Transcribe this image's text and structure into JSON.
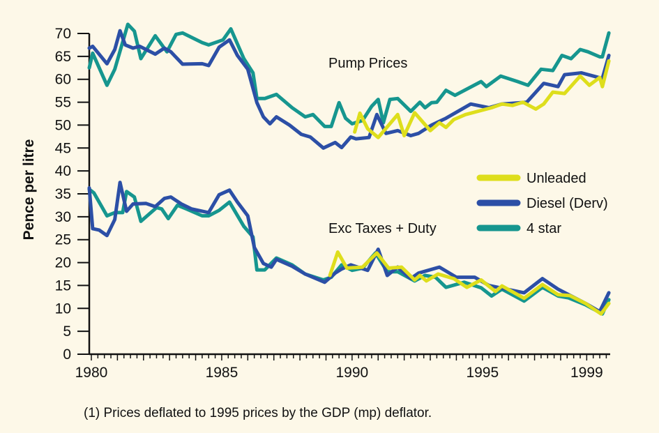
{
  "chart_data": {
    "type": "line",
    "ylabel": "Pence per litre",
    "xlabel": "",
    "ylim": [
      0,
      70
    ],
    "xlim": [
      1979.92,
      1999.9
    ],
    "y_ticks": [
      "0",
      "5",
      "10",
      "15",
      "20",
      "25",
      "30",
      "35",
      "40",
      "45",
      "50",
      "55",
      "60",
      "65",
      "70"
    ],
    "x_ticks": [
      {
        "value": 1980,
        "label": "1980"
      },
      {
        "value": 1985,
        "label": "1985"
      },
      {
        "value": 1990,
        "label": "1990"
      },
      {
        "value": 1995,
        "label": "1995"
      },
      {
        "value": 1999,
        "label": "1999"
      }
    ],
    "grid": false,
    "legend_position": "right-middle",
    "annotations": {
      "pump": "Pump Prices",
      "exc": "Exc Taxes + Duty"
    },
    "footnote": "(1) Prices deflated to 1995 prices by the GDP (mp) deflator.",
    "legend": [
      {
        "name": "Unleaded",
        "color": "#dede1c"
      },
      {
        "name": "Diesel (Derv)",
        "color": "#2c4fa6"
      },
      {
        "name": "4 star",
        "color": "#16968f"
      }
    ],
    "series": [
      {
        "name": "4 star",
        "group": "Pump Prices",
        "color": "#16968f",
        "points": [
          [
            1979.92,
            62.5
          ],
          [
            1980.05,
            65.7
          ],
          [
            1980.6,
            58.7
          ],
          [
            1980.9,
            62.2
          ],
          [
            1981.4,
            72
          ],
          [
            1981.65,
            70.5
          ],
          [
            1981.9,
            64.5
          ],
          [
            1982.45,
            69.5
          ],
          [
            1982.9,
            66
          ],
          [
            1983.25,
            69.8
          ],
          [
            1983.5,
            70.1
          ],
          [
            1984.25,
            68
          ],
          [
            1984.5,
            67.5
          ],
          [
            1985.05,
            68.6
          ],
          [
            1985.35,
            71
          ],
          [
            1985.85,
            64.5
          ],
          [
            1986.2,
            61.4
          ],
          [
            1986.35,
            55.8
          ],
          [
            1986.65,
            55.8
          ],
          [
            1987.1,
            56.7
          ],
          [
            1987.7,
            53.8
          ],
          [
            1988.2,
            51.8
          ],
          [
            1988.5,
            52.3
          ],
          [
            1988.95,
            49.7
          ],
          [
            1989.2,
            49.7
          ],
          [
            1989.5,
            54.9
          ],
          [
            1989.75,
            51.5
          ],
          [
            1990.0,
            50.3
          ],
          [
            1990.4,
            51
          ],
          [
            1990.75,
            54.1
          ],
          [
            1991.0,
            55.6
          ],
          [
            1991.2,
            50.5
          ],
          [
            1991.45,
            55.6
          ],
          [
            1991.75,
            55.8
          ],
          [
            1992.25,
            53
          ],
          [
            1992.6,
            55
          ],
          [
            1992.8,
            53.8
          ],
          [
            1993.05,
            54.9
          ],
          [
            1993.25,
            55
          ],
          [
            1993.6,
            57.6
          ],
          [
            1993.95,
            56.5
          ],
          [
            1994.95,
            59.5
          ],
          [
            1995.15,
            58.4
          ],
          [
            1995.7,
            60.7
          ],
          [
            1996.35,
            59.5
          ],
          [
            1996.75,
            58.7
          ],
          [
            1997.25,
            62.2
          ],
          [
            1997.7,
            61.9
          ],
          [
            1998.05,
            65.2
          ],
          [
            1998.4,
            64.5
          ],
          [
            1998.75,
            66.5
          ],
          [
            1999.05,
            66
          ],
          [
            1999.5,
            64.9
          ],
          [
            1999.6,
            64.9
          ],
          [
            1999.85,
            70.1
          ]
        ]
      },
      {
        "name": "Diesel (Derv)",
        "group": "Pump Prices",
        "color": "#2c4fa6",
        "points": [
          [
            1979.92,
            66.8
          ],
          [
            1980.05,
            67.2
          ],
          [
            1980.6,
            63.4
          ],
          [
            1980.9,
            66.5
          ],
          [
            1981.1,
            70.6
          ],
          [
            1981.3,
            67.5
          ],
          [
            1981.6,
            66.8
          ],
          [
            1981.85,
            67.2
          ],
          [
            1982.45,
            65.5
          ],
          [
            1982.8,
            66.8
          ],
          [
            1983.05,
            66
          ],
          [
            1983.5,
            63.3
          ],
          [
            1984.25,
            63.4
          ],
          [
            1984.5,
            63
          ],
          [
            1984.9,
            67
          ],
          [
            1985.3,
            68.6
          ],
          [
            1985.6,
            65.2
          ],
          [
            1986.0,
            62.2
          ],
          [
            1986.35,
            54.9
          ],
          [
            1986.6,
            51.8
          ],
          [
            1986.85,
            50.3
          ],
          [
            1987.1,
            51.8
          ],
          [
            1987.6,
            50
          ],
          [
            1988.05,
            48
          ],
          [
            1988.4,
            47.4
          ],
          [
            1988.9,
            45
          ],
          [
            1989.35,
            46.2
          ],
          [
            1989.6,
            45.1
          ],
          [
            1989.95,
            47.4
          ],
          [
            1990.15,
            47
          ],
          [
            1990.65,
            47.3
          ],
          [
            1990.95,
            52.3
          ],
          [
            1991.3,
            48.2
          ],
          [
            1991.75,
            48.8
          ],
          [
            1992.25,
            47.7
          ],
          [
            1992.55,
            48.2
          ],
          [
            1993.05,
            50
          ],
          [
            1993.6,
            51.5
          ],
          [
            1994.55,
            54.6
          ],
          [
            1995.25,
            53.8
          ],
          [
            1995.75,
            54.6
          ],
          [
            1996.7,
            55
          ],
          [
            1997.35,
            59.1
          ],
          [
            1997.9,
            58.4
          ],
          [
            1998.15,
            61
          ],
          [
            1998.8,
            61.4
          ],
          [
            1999.45,
            60.4
          ],
          [
            1999.6,
            60.2
          ],
          [
            1999.85,
            65.2
          ]
        ]
      },
      {
        "name": "Unleaded",
        "group": "Pump Prices",
        "color": "#dede1c",
        "points": [
          [
            1990.1,
            48.5
          ],
          [
            1990.3,
            52.6
          ],
          [
            1990.6,
            49.2
          ],
          [
            1991.0,
            47.3
          ],
          [
            1991.75,
            52.3
          ],
          [
            1992.0,
            47.7
          ],
          [
            1992.4,
            52.7
          ],
          [
            1993.0,
            48.8
          ],
          [
            1993.35,
            50.5
          ],
          [
            1993.6,
            49.5
          ],
          [
            1993.9,
            51.2
          ],
          [
            1994.35,
            52.3
          ],
          [
            1995.35,
            53.8
          ],
          [
            1995.75,
            54.6
          ],
          [
            1996.15,
            54.3
          ],
          [
            1996.55,
            55
          ],
          [
            1997.05,
            53.5
          ],
          [
            1997.35,
            54.6
          ],
          [
            1997.7,
            57.2
          ],
          [
            1998.15,
            56.9
          ],
          [
            1998.75,
            60.7
          ],
          [
            1999.1,
            58.7
          ],
          [
            1999.5,
            60.4
          ],
          [
            1999.6,
            58.4
          ],
          [
            1999.85,
            64
          ]
        ]
      },
      {
        "name": "4 star",
        "group": "Exc Taxes + Duty",
        "color": "#16968f",
        "points": [
          [
            1979.92,
            36
          ],
          [
            1980.1,
            35.2
          ],
          [
            1980.6,
            30.2
          ],
          [
            1980.9,
            30.9
          ],
          [
            1981.2,
            30.9
          ],
          [
            1981.35,
            35.5
          ],
          [
            1981.65,
            34.3
          ],
          [
            1981.9,
            29
          ],
          [
            1982.5,
            32
          ],
          [
            1982.7,
            31.7
          ],
          [
            1982.95,
            29.6
          ],
          [
            1983.3,
            32.5
          ],
          [
            1983.65,
            31.7
          ],
          [
            1984.25,
            30.2
          ],
          [
            1984.5,
            30.2
          ],
          [
            1984.9,
            31.4
          ],
          [
            1985.3,
            33.2
          ],
          [
            1985.85,
            27.9
          ],
          [
            1986.2,
            25.6
          ],
          [
            1986.35,
            18.4
          ],
          [
            1986.65,
            18.4
          ],
          [
            1987.1,
            21
          ],
          [
            1987.7,
            19.5
          ],
          [
            1988.2,
            17.5
          ],
          [
            1988.9,
            16.2
          ],
          [
            1989.2,
            16.8
          ],
          [
            1989.6,
            19.5
          ],
          [
            1990.0,
            18.3
          ],
          [
            1990.4,
            18.8
          ],
          [
            1990.9,
            22.1
          ],
          [
            1991.35,
            18
          ],
          [
            1991.75,
            18
          ],
          [
            1992.4,
            16
          ],
          [
            1992.8,
            17.2
          ],
          [
            1993.2,
            16.8
          ],
          [
            1993.6,
            14.6
          ],
          [
            1994.3,
            15.7
          ],
          [
            1994.95,
            14.5
          ],
          [
            1995.35,
            12.7
          ],
          [
            1995.75,
            14.2
          ],
          [
            1996.6,
            11.6
          ],
          [
            1997.3,
            14.6
          ],
          [
            1997.9,
            12.7
          ],
          [
            1998.3,
            12.3
          ],
          [
            1998.95,
            10.8
          ],
          [
            1999.6,
            8.8
          ],
          [
            1999.85,
            11.9
          ]
        ]
      },
      {
        "name": "Diesel (Derv)",
        "group": "Exc Taxes + Duty",
        "color": "#2c4fa6",
        "points": [
          [
            1979.92,
            36.3
          ],
          [
            1980.05,
            27.4
          ],
          [
            1980.3,
            27.1
          ],
          [
            1980.6,
            25.9
          ],
          [
            1980.9,
            29.4
          ],
          [
            1981.1,
            37.5
          ],
          [
            1981.35,
            31.2
          ],
          [
            1981.6,
            32.8
          ],
          [
            1982.1,
            32.9
          ],
          [
            1982.45,
            32.2
          ],
          [
            1982.8,
            34
          ],
          [
            1983.05,
            34.3
          ],
          [
            1983.45,
            32.8
          ],
          [
            1983.85,
            31.7
          ],
          [
            1984.5,
            30.9
          ],
          [
            1984.9,
            34.8
          ],
          [
            1985.3,
            35.8
          ],
          [
            1985.6,
            33.2
          ],
          [
            1986.0,
            30.2
          ],
          [
            1986.25,
            23.3
          ],
          [
            1986.6,
            19.8
          ],
          [
            1986.9,
            19
          ],
          [
            1987.1,
            20.7
          ],
          [
            1987.7,
            19.2
          ],
          [
            1988.2,
            17.5
          ],
          [
            1988.95,
            15.7
          ],
          [
            1989.35,
            17.7
          ],
          [
            1989.6,
            18.6
          ],
          [
            1989.95,
            19.5
          ],
          [
            1990.6,
            18.3
          ],
          [
            1991.0,
            22.9
          ],
          [
            1991.35,
            17.2
          ],
          [
            1991.75,
            19
          ],
          [
            1992.25,
            16.5
          ],
          [
            1992.55,
            17.7
          ],
          [
            1993.35,
            19
          ],
          [
            1994.0,
            16.8
          ],
          [
            1994.7,
            16.8
          ],
          [
            1995.25,
            15
          ],
          [
            1996.6,
            13.4
          ],
          [
            1997.3,
            16.5
          ],
          [
            1997.9,
            14.2
          ],
          [
            1998.95,
            11.1
          ],
          [
            1999.5,
            9.3
          ],
          [
            1999.85,
            13.4
          ]
        ]
      },
      {
        "name": "Unleaded",
        "group": "Exc Taxes + Duty",
        "color": "#dede1c",
        "points": [
          [
            1989.15,
            17.2
          ],
          [
            1989.45,
            22.3
          ],
          [
            1989.8,
            18.8
          ],
          [
            1990.4,
            19
          ],
          [
            1990.95,
            22.1
          ],
          [
            1991.4,
            18.8
          ],
          [
            1991.9,
            19
          ],
          [
            1992.4,
            16.2
          ],
          [
            1992.6,
            17.2
          ],
          [
            1992.85,
            16
          ],
          [
            1993.3,
            17.5
          ],
          [
            1993.9,
            16.5
          ],
          [
            1994.4,
            14.6
          ],
          [
            1994.95,
            16.2
          ],
          [
            1995.5,
            13.7
          ],
          [
            1995.75,
            14.9
          ],
          [
            1996.6,
            12.2
          ],
          [
            1997.3,
            15.2
          ],
          [
            1997.9,
            13
          ],
          [
            1998.35,
            12.8
          ],
          [
            1998.95,
            11.1
          ],
          [
            1999.55,
            8.8
          ],
          [
            1999.85,
            11.1
          ]
        ]
      }
    ]
  }
}
